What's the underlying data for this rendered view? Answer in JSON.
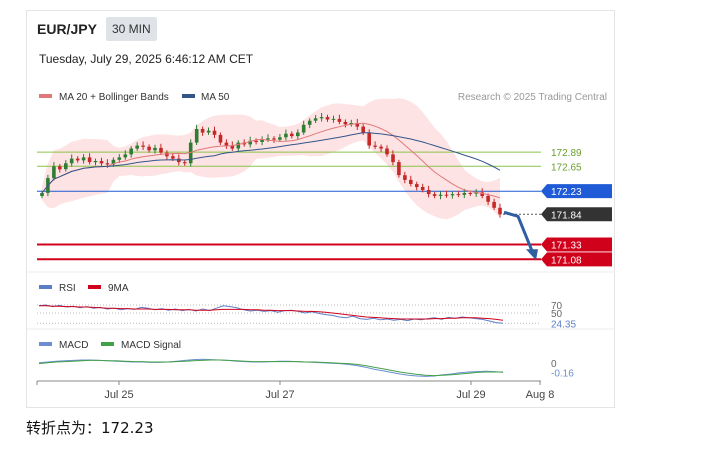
{
  "header": {
    "symbol": "EUR/JPY",
    "timeframe": "30 MIN",
    "datetime": "Tuesday, July 29, 2025 6:46:12 AM CET"
  },
  "footer": {
    "text": "转折点为：172.23"
  },
  "colors": {
    "ma20": "#e0787a",
    "ma50": "#33558a",
    "bollinger": "#fcd9d9",
    "bull": "#2e7d32",
    "bear": "#c62828",
    "support": "#d0021b",
    "pivot": "#1f5bd6",
    "current": "#333333",
    "resistance": "#8bc34a",
    "rsi": "#5b7fc7",
    "rsi_ma": "#d0021b",
    "macd": "#6a8fd0",
    "macd_signal": "#43a047",
    "forecast_arrow": "#2f5fa0"
  },
  "chart_data": [
    {
      "type": "candlestick",
      "legend": [
        "MA 20 + Bollinger Bands",
        "MA 50"
      ],
      "watermark": "Research © 2025 Trading Central",
      "x_ticks": [
        "Jul 25",
        "Jul 27",
        "Jul 29",
        "Aug 8"
      ],
      "ylim": [
        170.9,
        173.6
      ],
      "levels": [
        {
          "value": 172.89,
          "label": "172.89",
          "kind": "resistance"
        },
        {
          "value": 172.65,
          "label": "172.65",
          "kind": "resistance"
        },
        {
          "value": 172.23,
          "label": "172.23",
          "kind": "pivot"
        },
        {
          "value": 171.84,
          "label": "171.84",
          "kind": "current"
        },
        {
          "value": 171.33,
          "label": "171.33",
          "kind": "support"
        },
        {
          "value": 171.08,
          "label": "171.08",
          "kind": "support"
        }
      ],
      "close": [
        172.2,
        172.45,
        172.65,
        172.6,
        172.7,
        172.78,
        172.75,
        172.8,
        172.72,
        172.74,
        172.7,
        172.68,
        172.76,
        172.8,
        172.85,
        172.95,
        173.0,
        172.98,
        172.92,
        172.96,
        172.88,
        172.82,
        172.78,
        172.72,
        172.7,
        173.05,
        173.28,
        173.22,
        173.25,
        173.18,
        173.05,
        173.0,
        172.95,
        173.05,
        173.02,
        173.08,
        173.06,
        173.1,
        173.12,
        173.1,
        173.14,
        173.2,
        173.16,
        173.22,
        173.35,
        173.42,
        173.46,
        173.48,
        173.44,
        173.45,
        173.4,
        173.36,
        173.38,
        173.32,
        173.22,
        173.0,
        172.98,
        172.95,
        172.85,
        172.72,
        172.5,
        172.42,
        172.35,
        172.3,
        172.25,
        172.18,
        172.15,
        172.17,
        172.16,
        172.18,
        172.17,
        172.2,
        172.19,
        172.21,
        172.15,
        172.05,
        171.95,
        171.84
      ]
    },
    {
      "type": "line",
      "legend": [
        "RSI",
        "9MA"
      ],
      "levels": [
        "70",
        "50",
        "24.35"
      ],
      "ylim": [
        15,
        90
      ],
      "series": [
        {
          "name": "RSI",
          "values": [
            68,
            70,
            66,
            69,
            65,
            67,
            63,
            66,
            62,
            64,
            60,
            62,
            58,
            61,
            59,
            64,
            62,
            58,
            61,
            57,
            60,
            56,
            59,
            55,
            60,
            56,
            62,
            68,
            66,
            63,
            58,
            55,
            57,
            54,
            56,
            52,
            56,
            57,
            54,
            50,
            53,
            49,
            46,
            44,
            40,
            38,
            42,
            36,
            34,
            37,
            33,
            35,
            32,
            34,
            31,
            35,
            33,
            36,
            38,
            34,
            39,
            37,
            40,
            38,
            36,
            34,
            30,
            26,
            24.35
          ]
        },
        {
          "name": "9MA",
          "values": [
            68,
            68,
            67,
            67,
            66,
            66,
            65,
            65,
            64,
            63,
            62,
            62,
            61,
            61,
            60,
            60,
            60,
            59,
            59,
            59,
            58,
            58,
            58,
            57,
            57,
            57,
            58,
            59,
            59,
            59,
            59,
            58,
            58,
            57,
            57,
            56,
            56,
            56,
            55,
            54,
            54,
            53,
            52,
            50,
            48,
            46,
            44,
            42,
            40,
            39,
            38,
            37,
            36,
            35,
            35,
            35,
            35,
            35,
            36,
            36,
            37,
            37,
            38,
            38,
            38,
            37,
            36,
            34,
            32
          ]
        }
      ]
    },
    {
      "type": "line",
      "legend": [
        "MACD",
        "MACD Signal"
      ],
      "levels": [
        "0",
        "-0.16"
      ],
      "ylim": [
        -0.35,
        0.35
      ],
      "series": [
        {
          "name": "MACD",
          "values": [
            0.08,
            0.1,
            0.12,
            0.13,
            0.14,
            0.15,
            0.15,
            0.14,
            0.13,
            0.12,
            0.11,
            0.1,
            0.1,
            0.09,
            0.09,
            0.1,
            0.12,
            0.14,
            0.16,
            0.17,
            0.16,
            0.15,
            0.14,
            0.12,
            0.11,
            0.1,
            0.1,
            0.11,
            0.12,
            0.12,
            0.11,
            0.1,
            0.09,
            0.08,
            0.07,
            0.06,
            0.04,
            0.01,
            -0.03,
            -0.08,
            -0.12,
            -0.16,
            -0.2,
            -0.23,
            -0.25,
            -0.26,
            -0.25,
            -0.22,
            -0.2,
            -0.17,
            -0.15,
            -0.14,
            -0.13,
            -0.14,
            -0.16
          ]
        },
        {
          "name": "MACD Signal",
          "values": [
            0.06,
            0.08,
            0.1,
            0.11,
            0.12,
            0.13,
            0.14,
            0.14,
            0.13,
            0.13,
            0.12,
            0.11,
            0.11,
            0.1,
            0.1,
            0.1,
            0.11,
            0.12,
            0.13,
            0.14,
            0.15,
            0.15,
            0.14,
            0.13,
            0.12,
            0.11,
            0.11,
            0.11,
            0.11,
            0.11,
            0.11,
            0.1,
            0.1,
            0.09,
            0.08,
            0.07,
            0.06,
            0.04,
            0.01,
            -0.03,
            -0.07,
            -0.11,
            -0.15,
            -0.18,
            -0.21,
            -0.23,
            -0.24,
            -0.23,
            -0.22,
            -0.2,
            -0.18,
            -0.16,
            -0.15,
            -0.15,
            -0.15
          ]
        }
      ]
    }
  ]
}
